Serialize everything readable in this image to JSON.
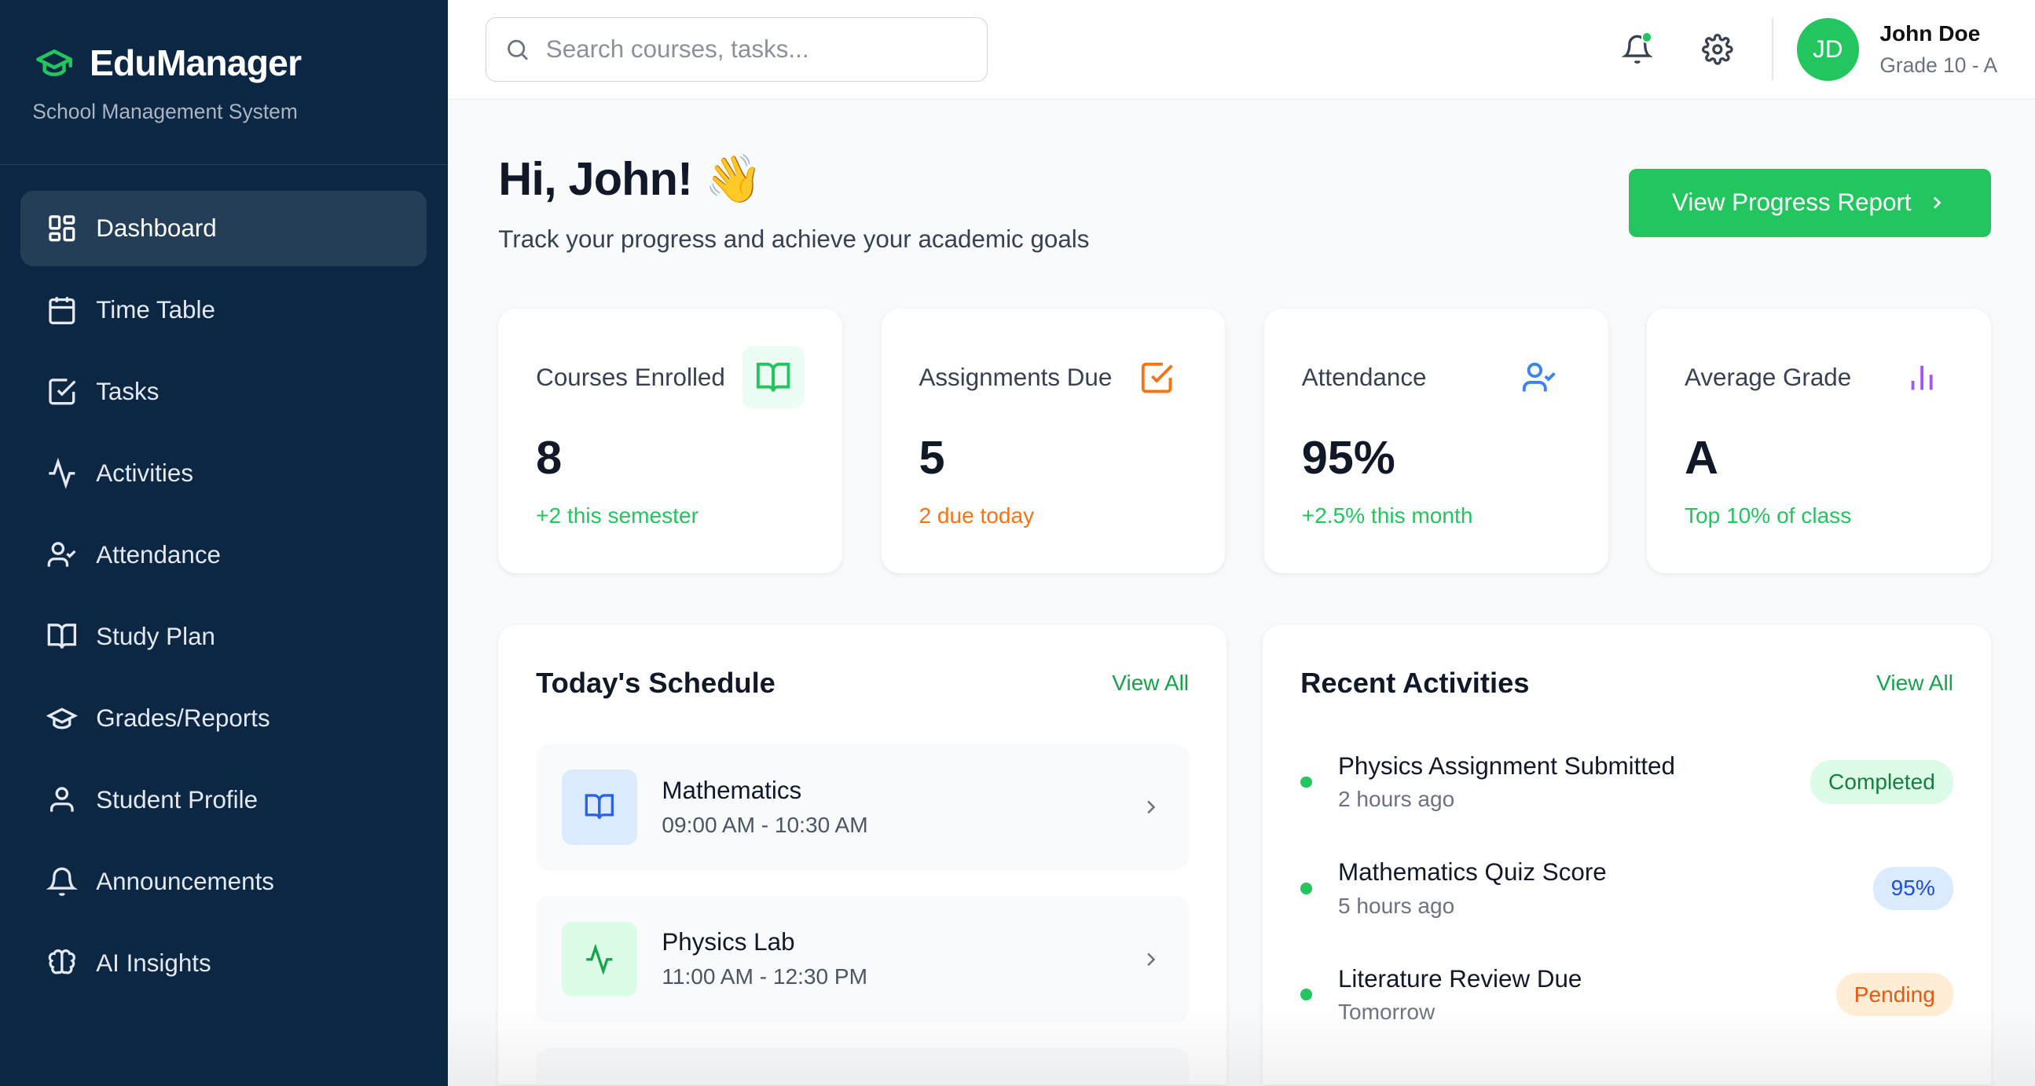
{
  "brand": {
    "title": "EduManager",
    "subtitle": "School Management System"
  },
  "nav": [
    {
      "label": "Dashboard",
      "icon": "dashboard-icon"
    },
    {
      "label": "Time Table",
      "icon": "calendar-icon"
    },
    {
      "label": "Tasks",
      "icon": "checkbox-icon"
    },
    {
      "label": "Activities",
      "icon": "activity-icon"
    },
    {
      "label": "Attendance",
      "icon": "user-check-icon"
    },
    {
      "label": "Study Plan",
      "icon": "book-open-icon"
    },
    {
      "label": "Grades/Reports",
      "icon": "graduation-cap-icon"
    },
    {
      "label": "Student Profile",
      "icon": "user-icon"
    },
    {
      "label": "Announcements",
      "icon": "bell-icon"
    },
    {
      "label": "AI Insights",
      "icon": "brain-icon"
    }
  ],
  "search": {
    "placeholder": "Search courses, tasks..."
  },
  "user": {
    "initials": "JD",
    "name": "John Doe",
    "grade": "Grade 10 - A"
  },
  "hero": {
    "greeting": "Hi, John! 👋",
    "subtitle": "Track your progress and achieve your academic goals",
    "button": "View Progress Report"
  },
  "stats": [
    {
      "label": "Courses Enrolled",
      "value": "8",
      "note": "+2 this semester",
      "color": "#22c55e"
    },
    {
      "label": "Assignments Due",
      "value": "5",
      "note": "2 due today",
      "color": "#f97316"
    },
    {
      "label": "Attendance",
      "value": "95%",
      "note": "+2.5% this month",
      "color": "#22c55e"
    },
    {
      "label": "Average Grade",
      "value": "A",
      "note": "Top 10% of class",
      "color": "#22c55e"
    }
  ],
  "schedule": {
    "title": "Today's Schedule",
    "view_all": "View All",
    "items": [
      {
        "name": "Mathematics",
        "time": "09:00 AM - 10:30 AM"
      },
      {
        "name": "Physics Lab",
        "time": "11:00 AM - 12:30 PM"
      }
    ]
  },
  "activities": {
    "title": "Recent Activities",
    "view_all": "View All",
    "items": [
      {
        "title": "Physics Assignment Submitted",
        "time": "2 hours ago",
        "badge": "Completed"
      },
      {
        "title": "Mathematics Quiz Score",
        "time": "5 hours ago",
        "badge": "95%"
      },
      {
        "title": "Literature Review Due",
        "time": "Tomorrow",
        "badge": "Pending"
      }
    ]
  },
  "colors": {
    "sidebar": "#0b2744",
    "accent": "#22c55e"
  }
}
